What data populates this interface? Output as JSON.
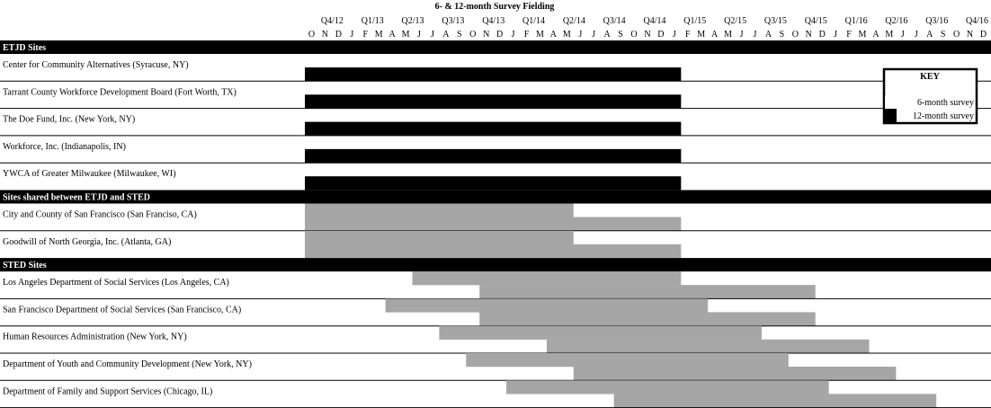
{
  "chart_data": {
    "type": "gantt",
    "title": "6- & 12-month Survey Fielding",
    "quarters": [
      "Q4/12",
      "Q1/13",
      "Q2/13",
      "Q3/13",
      "Q4/13",
      "Q1/14",
      "Q2/14",
      "Q3/14",
      "Q4/14",
      "Q1/15",
      "Q2/15",
      "Q3/15",
      "Q4/15",
      "Q1/16",
      "Q2/16",
      "Q3/16",
      "Q4/16"
    ],
    "months": [
      "O",
      "N",
      "D",
      "J",
      "F",
      "M",
      "A",
      "M",
      "J",
      "J",
      "A",
      "S",
      "O",
      "N",
      "D",
      "J",
      "F",
      "M",
      "A",
      "M",
      "J",
      "J",
      "A",
      "S",
      "O",
      "N",
      "D",
      "J",
      "F",
      "M",
      "A",
      "M",
      "J",
      "J",
      "A",
      "S",
      "O",
      "N",
      "D",
      "J",
      "F",
      "M",
      "A",
      "M",
      "J",
      "J",
      "A",
      "S",
      "O",
      "N",
      "D"
    ],
    "x_start": "Oct 2012",
    "x_end": "Dec 2016",
    "key": {
      "title": "KEY",
      "items": [
        {
          "label": "6-month survey",
          "color": "#ffffff"
        },
        {
          "label": "12-month survey",
          "color": "#000000"
        }
      ]
    },
    "colors": {
      "etjd": "#000000",
      "shared_sted": "#a6a6a6"
    },
    "sections": [
      {
        "label": "ETJD Sites",
        "rows": [
          {
            "label": "Center for Community Alternatives (Syracuse, NY)",
            "color": "#000000",
            "bars": [
              {
                "start": "Oct 2012",
                "end": "Feb 2015",
                "lane": "lower"
              }
            ]
          },
          {
            "label": "Tarrant County Workforce Development Board (Fort Worth, TX)",
            "color": "#000000",
            "bars": [
              {
                "start": "Oct 2012",
                "end": "Feb 2015",
                "lane": "lower"
              }
            ]
          },
          {
            "label": "The Doe Fund, Inc. (New York, NY)",
            "color": "#000000",
            "bars": [
              {
                "start": "Oct 2012",
                "end": "Feb 2015",
                "lane": "lower"
              }
            ]
          },
          {
            "label": "Workforce, Inc. (Indianapolis, IN)",
            "color": "#000000",
            "bars": [
              {
                "start": "Oct 2012",
                "end": "Feb 2015",
                "lane": "lower"
              }
            ]
          },
          {
            "label": "YWCA of Greater Milwaukee (Milwaukee, WI)",
            "color": "#000000",
            "bars": [
              {
                "start": "Oct 2012",
                "end": "Feb 2015",
                "lane": "lower"
              }
            ]
          }
        ]
      },
      {
        "label": "Sites shared between ETJD and STED",
        "rows": [
          {
            "label": "City and County of San Francisco (San Franciso, CA)",
            "color": "#a6a6a6",
            "bars": [
              {
                "start": "Oct 2012",
                "end": "Jun 2014",
                "lane": "upper"
              },
              {
                "start": "Oct 2012",
                "end": "Feb 2015",
                "lane": "lower"
              }
            ]
          },
          {
            "label": "Goodwill of North Georgia, Inc. (Atlanta, GA)",
            "color": "#a6a6a6",
            "bars": [
              {
                "start": "Oct 2012",
                "end": "Jun 2014",
                "lane": "upper"
              },
              {
                "start": "Oct 2012",
                "end": "Feb 2015",
                "lane": "lower"
              }
            ]
          }
        ]
      },
      {
        "label": "STED Sites",
        "rows": [
          {
            "label": "Los Angeles Department of Social Services (Los Angeles, CA)",
            "color": "#a6a6a6",
            "bars": [
              {
                "start": "Jun 2013",
                "end": "Feb 2015",
                "lane": "upper"
              },
              {
                "start": "Nov 2013",
                "end": "Dec 2015",
                "lane": "lower"
              }
            ]
          },
          {
            "label": "San Francisco Department of Social Services (San Francisco, CA)",
            "color": "#a6a6a6",
            "bars": [
              {
                "start": "Apr 2013",
                "end": "Apr 2015",
                "lane": "upper"
              },
              {
                "start": "Nov 2013",
                "end": "Dec 2015",
                "lane": "lower"
              }
            ]
          },
          {
            "label": "Human Resources Administration (New York, NY)",
            "color": "#a6a6a6",
            "bars": [
              {
                "start": "Aug 2013",
                "end": "Aug 2015",
                "lane": "upper"
              },
              {
                "start": "Apr 2014",
                "end": "Apr 2016",
                "lane": "lower"
              }
            ]
          },
          {
            "label": "Department of Youth and Community Development (New York, NY)",
            "color": "#a6a6a6",
            "bars": [
              {
                "start": "Oct 2013",
                "end": "Oct 2015",
                "lane": "upper"
              },
              {
                "start": "Jun 2014",
                "end": "Jun 2016",
                "lane": "lower"
              }
            ]
          },
          {
            "label": "Department of Family and Support Services (Chicago, IL)",
            "color": "#a6a6a6",
            "bars": [
              {
                "start": "Jan 2014",
                "end": "Jan 2016",
                "lane": "upper"
              },
              {
                "start": "Sep 2014",
                "end": "Sep 2016",
                "lane": "lower"
              }
            ]
          }
        ]
      }
    ]
  }
}
